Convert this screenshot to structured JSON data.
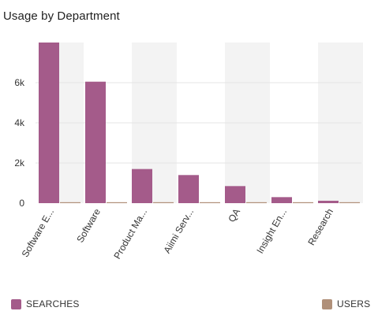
{
  "chart_data": {
    "type": "bar",
    "title": "Usage by Department",
    "categories": [
      "Software E...",
      "Software",
      "Product Ma...",
      "Aiimi Serv...",
      "QA",
      "Insight En...",
      "Research"
    ],
    "series": [
      {
        "name": "SEARCHES",
        "color": "#a45b8a",
        "values": [
          8000,
          6050,
          1700,
          1400,
          850,
          300,
          120
        ]
      },
      {
        "name": "USERS",
        "color": "#b09079",
        "values": [
          20,
          20,
          15,
          15,
          10,
          5,
          5
        ]
      }
    ],
    "yticks": [
      "0",
      "2k",
      "4k",
      "6k"
    ],
    "ytick_values": [
      0,
      2000,
      4000,
      6000
    ],
    "ylim": [
      0,
      8000
    ],
    "grid": true,
    "legend": "bottom",
    "band_color": "#f3f3f3",
    "grid_color": "#e4e4e4"
  }
}
